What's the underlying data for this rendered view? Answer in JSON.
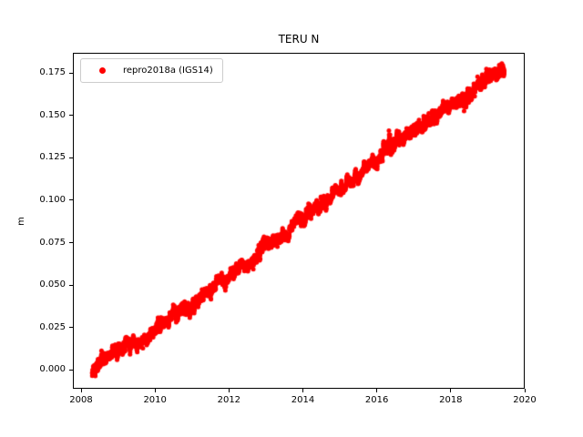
{
  "window": {
    "background": "#ffffff"
  },
  "chart": {
    "title": "TERU N",
    "ylabel": "m"
  },
  "legend": {
    "label": "repro2018a (IGS14)",
    "marker_color": "#ff0000"
  },
  "chart_data": {
    "type": "scatter",
    "title": "TERU N",
    "xlabel": "",
    "ylabel": "m",
    "xlim": [
      2007.778,
      2020.0
    ],
    "ylim": [
      -0.011,
      0.1868
    ],
    "grid": false,
    "legend_position": "upper left",
    "xticks": {
      "values": [
        2008,
        2010,
        2012,
        2014,
        2016,
        2018,
        2020
      ],
      "labels": [
        "2008",
        "2010",
        "2012",
        "2014",
        "2016",
        "2018",
        "2020"
      ]
    },
    "yticks": {
      "values": [
        0.0,
        0.025,
        0.05,
        0.075,
        0.1,
        0.125,
        0.15,
        0.175
      ],
      "labels": [
        "0.000",
        "0.025",
        "0.050",
        "0.075",
        "0.100",
        "0.125",
        "0.150",
        "0.175"
      ]
    },
    "seed": 11,
    "series": [
      {
        "name": "repro2018a (IGS14)",
        "color": "#ff0000",
        "marker": "dot",
        "marker_radius_px": 2.5,
        "x_start": 2008.3,
        "x_end": 2019.45,
        "samples_per_year": 365,
        "noise_sigma": 0.0011,
        "noisy_periods": [
          {
            "start": 2016.15,
            "end": 2016.6,
            "sigma": 0.0021
          },
          {
            "start": 2019.25,
            "end": 2019.5,
            "sigma": 0.0018
          }
        ],
        "outlier_cluster": {
          "start": 2010.05,
          "end": 2010.16,
          "value": 0.0235,
          "count": 14,
          "sigma": 0.0009
        },
        "trend_anchors": [
          [
            2008.3,
            0.0
          ],
          [
            2008.5,
            0.003
          ],
          [
            2008.7,
            0.007
          ],
          [
            2008.9,
            0.0105
          ],
          [
            2009.1,
            0.013
          ],
          [
            2009.3,
            0.015
          ],
          [
            2009.55,
            0.0165
          ],
          [
            2009.8,
            0.0185
          ],
          [
            2010.0,
            0.024
          ],
          [
            2010.2,
            0.0285
          ],
          [
            2010.45,
            0.0315
          ],
          [
            2010.7,
            0.0335
          ],
          [
            2011.0,
            0.037
          ],
          [
            2011.35,
            0.044
          ],
          [
            2011.7,
            0.051
          ],
          [
            2011.9,
            0.0545
          ],
          [
            2012.1,
            0.0585
          ],
          [
            2012.35,
            0.061
          ],
          [
            2012.6,
            0.0635
          ],
          [
            2012.8,
            0.0655
          ],
          [
            2012.95,
            0.073
          ],
          [
            2013.25,
            0.0775
          ],
          [
            2013.6,
            0.0795
          ],
          [
            2013.8,
            0.088
          ],
          [
            2014.1,
            0.092
          ],
          [
            2014.4,
            0.0965
          ],
          [
            2014.75,
            0.1005
          ],
          [
            2015.05,
            0.106
          ],
          [
            2015.4,
            0.113
          ],
          [
            2015.7,
            0.119
          ],
          [
            2016.0,
            0.124
          ],
          [
            2016.25,
            0.1305
          ],
          [
            2016.5,
            0.133
          ],
          [
            2016.75,
            0.137
          ],
          [
            2016.95,
            0.141
          ],
          [
            2017.35,
            0.147
          ],
          [
            2017.85,
            0.154
          ],
          [
            2018.35,
            0.16
          ],
          [
            2018.6,
            0.1655
          ],
          [
            2019.0,
            0.172
          ],
          [
            2019.25,
            0.1745
          ],
          [
            2019.45,
            0.177
          ]
        ]
      }
    ]
  }
}
